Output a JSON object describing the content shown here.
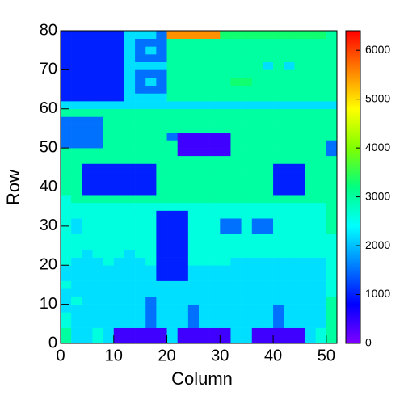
{
  "chart_data": {
    "type": "heatmap",
    "x_label": "Column",
    "y_label": "Row",
    "xlim": [
      0,
      52
    ],
    "xticks": [
      0,
      10,
      20,
      30,
      40,
      50
    ],
    "ylim": [
      0,
      80
    ],
    "yticks": [
      0,
      10,
      20,
      30,
      40,
      50,
      60,
      70,
      80
    ],
    "zlim": [
      0,
      6400
    ],
    "zticks": [
      0,
      1000,
      2000,
      3000,
      4000,
      5000,
      6000
    ],
    "colors": [
      "#7f00ff",
      "#0000ff",
      "#0080ff",
      "#00ffff",
      "#00ff80",
      "#80ff00",
      "#ffff00",
      "#ff8000",
      "#ff0000"
    ],
    "x_bins": [
      0,
      2,
      4,
      6,
      8,
      10,
      12,
      14,
      16,
      18,
      20,
      22,
      24,
      26,
      28,
      30,
      32,
      34,
      36,
      38,
      40,
      42,
      44,
      46,
      48,
      50,
      52
    ],
    "y_bins": [
      0,
      2,
      4,
      6,
      8,
      10,
      12,
      14,
      16,
      18,
      20,
      22,
      24,
      26,
      28,
      30,
      32,
      34,
      36,
      38,
      40,
      42,
      44,
      46,
      48,
      50,
      52,
      54,
      56,
      58,
      60,
      62,
      64,
      66,
      68,
      70,
      72,
      74,
      76,
      78,
      80
    ],
    "z": [
      [
        3000,
        2200,
        2200,
        2600,
        2200,
        400,
        400,
        400,
        400,
        400,
        2200,
        400,
        400,
        400,
        400,
        400,
        2200,
        2200,
        400,
        400,
        400,
        400,
        400,
        2200,
        2600,
        3000
      ],
      [
        3000,
        2200,
        2200,
        2600,
        2200,
        400,
        400,
        400,
        400,
        400,
        2200,
        400,
        400,
        400,
        400,
        400,
        2200,
        2200,
        400,
        400,
        400,
        400,
        400,
        2200,
        2600,
        3000
      ],
      [
        2600,
        2200,
        2200,
        2200,
        2200,
        2200,
        2200,
        2200,
        1500,
        2200,
        2200,
        2200,
        1500,
        2200,
        2200,
        2200,
        2200,
        2200,
        2200,
        2200,
        1500,
        2200,
        2200,
        2200,
        2200,
        3000
      ],
      [
        2600,
        2200,
        2200,
        2200,
        2200,
        2200,
        2200,
        2200,
        1500,
        2200,
        2200,
        2200,
        1500,
        2200,
        2200,
        2200,
        2200,
        2200,
        2200,
        2200,
        1500,
        2200,
        2200,
        2200,
        2200,
        3000
      ],
      [
        2200,
        2200,
        2200,
        2200,
        2200,
        2200,
        2200,
        2200,
        1500,
        2200,
        2200,
        2200,
        1500,
        2200,
        2200,
        2200,
        2200,
        2200,
        2200,
        2200,
        1500,
        2200,
        2200,
        2200,
        2200,
        3000
      ],
      [
        2200,
        2600,
        2200,
        2200,
        2200,
        2200,
        2200,
        2200,
        1500,
        2200,
        2200,
        2200,
        2200,
        2200,
        2200,
        2200,
        2200,
        2200,
        2200,
        2200,
        2200,
        2200,
        2200,
        2200,
        2200,
        3000
      ],
      [
        2200,
        2200,
        2200,
        2200,
        2200,
        2200,
        2200,
        2200,
        2200,
        2200,
        2200,
        2200,
        2200,
        2200,
        2200,
        2200,
        2200,
        2200,
        2200,
        2200,
        2200,
        2200,
        2200,
        2200,
        2200,
        2600
      ],
      [
        2600,
        2200,
        2200,
        2200,
        2200,
        2200,
        2200,
        2200,
        2200,
        2200,
        2200,
        2200,
        2200,
        2200,
        2200,
        2200,
        2200,
        2200,
        2200,
        2200,
        2200,
        2200,
        2200,
        2200,
        2200,
        2600
      ],
      [
        2200,
        2200,
        2200,
        2200,
        2200,
        2200,
        2200,
        2200,
        2200,
        1000,
        1000,
        1000,
        2200,
        2200,
        2200,
        2200,
        2200,
        2200,
        2200,
        2200,
        2200,
        2200,
        2200,
        2200,
        2200,
        2600
      ],
      [
        2200,
        2200,
        2200,
        2200,
        2200,
        2200,
        2200,
        2200,
        2200,
        1000,
        1000,
        1000,
        2200,
        2200,
        2200,
        2200,
        2200,
        2200,
        2200,
        2200,
        2200,
        2200,
        2200,
        2200,
        2200,
        2600
      ],
      [
        2600,
        2200,
        2200,
        2200,
        2600,
        2200,
        2200,
        2200,
        2600,
        1000,
        1000,
        1000,
        2600,
        2600,
        2600,
        2600,
        2200,
        2200,
        2200,
        2200,
        2200,
        2200,
        2200,
        2200,
        2200,
        2600
      ],
      [
        2600,
        2600,
        2200,
        2600,
        2600,
        2600,
        2200,
        2600,
        2600,
        1000,
        1000,
        1000,
        2600,
        2600,
        2600,
        2600,
        2600,
        2600,
        2600,
        2600,
        2600,
        2600,
        2600,
        2600,
        2600,
        2600
      ],
      [
        2600,
        2600,
        2600,
        2600,
        2600,
        2600,
        2600,
        2600,
        2600,
        1000,
        1000,
        1000,
        2600,
        2600,
        2600,
        2600,
        2600,
        2600,
        2600,
        2600,
        2600,
        2600,
        2600,
        2600,
        2600,
        2600
      ],
      [
        2600,
        2600,
        2600,
        2600,
        2600,
        2600,
        2600,
        2600,
        2600,
        1000,
        1000,
        1000,
        2600,
        2600,
        2600,
        2600,
        2600,
        2600,
        2600,
        2600,
        2600,
        2600,
        2600,
        2600,
        2600,
        2600
      ],
      [
        2600,
        2200,
        2600,
        2600,
        2600,
        2600,
        2600,
        2600,
        2600,
        1000,
        1000,
        1000,
        2600,
        2600,
        2600,
        1500,
        1500,
        2600,
        1500,
        1500,
        2600,
        2600,
        2600,
        2600,
        2600,
        3000
      ],
      [
        2600,
        2200,
        2600,
        2600,
        2600,
        2600,
        2600,
        2600,
        2600,
        1000,
        1000,
        1000,
        2600,
        2600,
        2600,
        1500,
        1500,
        2600,
        1500,
        1500,
        2600,
        2600,
        2600,
        2600,
        2600,
        3000
      ],
      [
        2600,
        2600,
        2600,
        2600,
        2600,
        2600,
        2600,
        2600,
        2600,
        1000,
        1000,
        1000,
        2600,
        2600,
        2600,
        2600,
        2600,
        2600,
        2600,
        2600,
        2600,
        2600,
        2600,
        2600,
        2600,
        3000
      ],
      [
        2600,
        2600,
        2600,
        2600,
        2600,
        2600,
        2600,
        2600,
        2600,
        2600,
        2600,
        2600,
        2600,
        2600,
        2600,
        2600,
        2600,
        2600,
        2600,
        2600,
        2600,
        2600,
        2600,
        2600,
        2600,
        3000
      ],
      [
        2600,
        3000,
        3000,
        3000,
        3000,
        3000,
        3000,
        3000,
        3000,
        3000,
        3000,
        3000,
        3000,
        3000,
        3000,
        3000,
        3000,
        3000,
        3000,
        3000,
        3000,
        3000,
        3000,
        3000,
        3000,
        3000
      ],
      [
        3000,
        3000,
        1000,
        1000,
        1000,
        1000,
        1000,
        1000,
        1000,
        3000,
        3000,
        3000,
        3000,
        3000,
        3000,
        3000,
        3000,
        3000,
        3000,
        3000,
        1000,
        1000,
        1000,
        3000,
        3000,
        3000
      ],
      [
        3000,
        3000,
        1000,
        1000,
        1000,
        1000,
        1000,
        1000,
        1000,
        3000,
        3000,
        3000,
        3000,
        3000,
        3000,
        3000,
        3000,
        3000,
        3000,
        3000,
        1000,
        1000,
        1000,
        3000,
        3000,
        3000
      ],
      [
        3000,
        3000,
        1000,
        1000,
        1000,
        1000,
        1000,
        1000,
        1000,
        3000,
        3000,
        3000,
        3000,
        3000,
        3000,
        3000,
        3000,
        3000,
        3000,
        3000,
        1000,
        1000,
        1000,
        3000,
        3000,
        3000
      ],
      [
        3000,
        3000,
        1000,
        1000,
        1000,
        1000,
        1000,
        1000,
        1000,
        3000,
        3000,
        3000,
        3000,
        3000,
        3000,
        3000,
        3000,
        3000,
        3000,
        3000,
        1000,
        1000,
        1000,
        3000,
        3000,
        3000
      ],
      [
        3000,
        3000,
        3000,
        3000,
        3000,
        3000,
        3000,
        3000,
        3000,
        3000,
        3000,
        3000,
        3000,
        3000,
        3000,
        3000,
        3000,
        3000,
        3000,
        3000,
        3000,
        3000,
        3000,
        3000,
        3000,
        3000
      ],
      [
        3000,
        3000,
        3000,
        3000,
        3000,
        3000,
        3000,
        3000,
        3000,
        3000,
        3000,
        400,
        400,
        400,
        400,
        400,
        3000,
        3000,
        3000,
        3000,
        3000,
        3000,
        3000,
        3000,
        3000,
        1500
      ],
      [
        1500,
        1500,
        1500,
        1500,
        3000,
        3000,
        3000,
        3000,
        3000,
        3000,
        3000,
        400,
        400,
        400,
        400,
        400,
        3000,
        3000,
        3000,
        3000,
        3000,
        3000,
        3000,
        3000,
        3000,
        1500
      ],
      [
        1500,
        1500,
        1500,
        1500,
        3000,
        3000,
        3000,
        3000,
        3000,
        3000,
        1500,
        400,
        400,
        400,
        400,
        400,
        3000,
        3000,
        3000,
        3000,
        3000,
        3000,
        3000,
        3000,
        3000,
        3000
      ],
      [
        1500,
        1500,
        1500,
        1500,
        3000,
        3000,
        3000,
        3000,
        3000,
        3000,
        3000,
        3000,
        3000,
        3000,
        3000,
        3000,
        3000,
        3000,
        3000,
        3000,
        3000,
        3000,
        3000,
        3000,
        3000,
        3000
      ],
      [
        1500,
        1500,
        1500,
        1500,
        3000,
        3000,
        3000,
        3000,
        3000,
        3000,
        3000,
        3000,
        3000,
        3000,
        3000,
        3000,
        3000,
        3000,
        3000,
        3000,
        3000,
        3000,
        3000,
        3000,
        3000,
        3000
      ],
      [
        3000,
        3000,
        3000,
        3000,
        3000,
        3000,
        3000,
        3000,
        3000,
        3000,
        3000,
        3000,
        3000,
        3000,
        3000,
        3000,
        3000,
        3000,
        3000,
        3000,
        3000,
        3000,
        3000,
        3000,
        3000,
        3000
      ],
      [
        2200,
        2200,
        2200,
        2200,
        2200,
        2200,
        2200,
        2200,
        2200,
        2200,
        2200,
        2200,
        2200,
        2200,
        2200,
        2200,
        2200,
        2200,
        2200,
        2200,
        2200,
        2200,
        2200,
        2200,
        2200,
        2200
      ],
      [
        1000,
        1000,
        1000,
        1000,
        1000,
        1000,
        2200,
        2200,
        2200,
        2200,
        3000,
        3000,
        3000,
        3000,
        3000,
        3000,
        3000,
        3000,
        3000,
        3000,
        3000,
        3000,
        3000,
        3000,
        3000,
        3000
      ],
      [
        1000,
        1000,
        1000,
        1000,
        1000,
        1000,
        2200,
        1500,
        1500,
        1500,
        3000,
        3000,
        3000,
        3000,
        3000,
        3000,
        3000,
        3000,
        3000,
        3000,
        3000,
        3000,
        3000,
        3000,
        3000,
        3000
      ],
      [
        1000,
        1000,
        1000,
        1000,
        1000,
        1000,
        2200,
        1500,
        2200,
        1500,
        3000,
        3000,
        3000,
        3000,
        3000,
        3000,
        3300,
        3300,
        3000,
        3000,
        3000,
        3000,
        3000,
        3000,
        3000,
        3000
      ],
      [
        1000,
        1000,
        1000,
        1000,
        1000,
        1000,
        2200,
        1500,
        1500,
        1500,
        3000,
        3000,
        3000,
        3000,
        3000,
        3000,
        3000,
        3000,
        3000,
        3000,
        3000,
        3000,
        3000,
        3000,
        3000,
        3000
      ],
      [
        1000,
        1000,
        1000,
        1000,
        1000,
        1000,
        2200,
        2200,
        2200,
        2200,
        3000,
        3000,
        3000,
        3000,
        3000,
        3000,
        3000,
        3000,
        3000,
        2200,
        3000,
        2200,
        3000,
        3000,
        3000,
        3000
      ],
      [
        1000,
        1000,
        1000,
        1000,
        1000,
        1000,
        2200,
        1500,
        1500,
        1500,
        3000,
        3000,
        3000,
        3000,
        3000,
        3000,
        3000,
        3000,
        3000,
        3000,
        3000,
        3000,
        3000,
        3000,
        3000,
        3000
      ],
      [
        1000,
        1000,
        1000,
        1000,
        1000,
        1000,
        2200,
        1500,
        2200,
        1500,
        3000,
        3000,
        3000,
        3000,
        3000,
        3000,
        3000,
        3000,
        3000,
        3000,
        3000,
        3000,
        3000,
        3000,
        3000,
        3000
      ],
      [
        1000,
        1000,
        1000,
        1000,
        1000,
        1000,
        2200,
        1500,
        1500,
        1500,
        3000,
        3000,
        3000,
        3000,
        3000,
        3000,
        3000,
        3000,
        3000,
        3000,
        3000,
        3000,
        3000,
        3000,
        3000,
        3000
      ],
      [
        1000,
        1000,
        1000,
        1000,
        1000,
        1000,
        2200,
        2200,
        2200,
        1500,
        5500,
        5500,
        5500,
        5500,
        5500,
        3300,
        3300,
        3300,
        3300,
        3300,
        3300,
        3300,
        3300,
        3300,
        3300,
        3000
      ]
    ]
  }
}
